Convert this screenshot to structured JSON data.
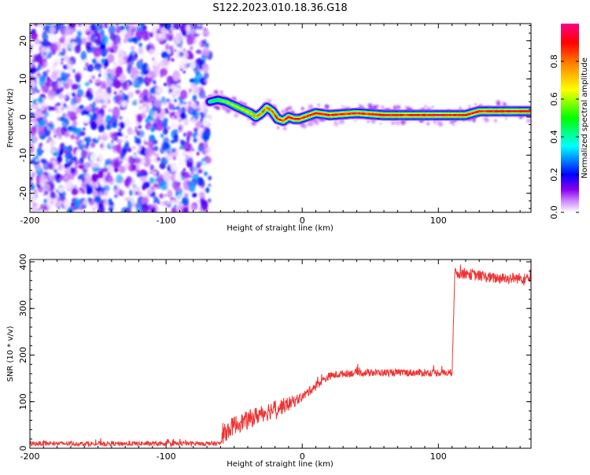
{
  "figure": {
    "title": "S122.2023.010.18.36.G18"
  },
  "chart_data": [
    {
      "type": "heatmap",
      "name": "spectrogram",
      "xlabel": "Height of straight line (km)",
      "ylabel": "Frequency (Hz)",
      "xlim": [
        -200,
        168
      ],
      "ylim": [
        -25,
        24.5
      ],
      "xticks": [
        -200,
        -100,
        0,
        100
      ],
      "yticks": [
        -20,
        -10,
        0,
        10,
        20
      ],
      "grid": false,
      "colorbar": {
        "label": "Normalized spectral amplitude",
        "range": [
          0.0,
          1.0
        ],
        "ticks": [
          0.0,
          0.2,
          0.4,
          0.6,
          0.8
        ],
        "colormap": [
          "#ffffff",
          "#8800ee",
          "#0000ff",
          "#00ffff",
          "#00ff00",
          "#ffff00",
          "#ff8800",
          "#ff0000",
          "#ff0088"
        ]
      },
      "noise_region": {
        "x_from": -200,
        "x_to": -68,
        "amplitude_range": [
          0.0,
          0.3
        ]
      },
      "signal_track": {
        "x": [
          -68,
          -62,
          -56,
          -50,
          -44,
          -38,
          -34,
          -30,
          -26,
          -22,
          -18,
          -14,
          -10,
          -6,
          -2,
          2,
          10,
          20,
          40,
          60,
          80,
          100,
          120,
          130,
          150,
          168
        ],
        "freq": [
          4.0,
          4.5,
          4.0,
          3.0,
          2.0,
          1.0,
          0.0,
          1.0,
          2.5,
          1.5,
          -0.5,
          -1.0,
          0.0,
          -0.5,
          -0.5,
          0.0,
          1.0,
          0.5,
          1.0,
          0.5,
          0.5,
          0.5,
          0.5,
          1.5,
          1.5,
          1.5
        ],
        "amplitude": [
          0.45,
          0.5,
          0.55,
          0.6,
          0.65,
          0.7,
          0.75,
          0.8,
          0.8,
          0.85,
          0.85,
          0.85,
          0.9,
          0.9,
          0.9,
          0.9,
          0.9,
          0.9,
          0.9,
          0.9,
          0.9,
          0.9,
          0.9,
          0.9,
          0.9,
          0.9
        ]
      }
    },
    {
      "type": "line",
      "name": "snr",
      "xlabel": "Height of straight line (km)",
      "ylabel": "SNR (10 * v/v)",
      "xlim": [
        -200,
        168
      ],
      "ylim": [
        0,
        405
      ],
      "xticks": [
        -200,
        -100,
        0,
        100
      ],
      "yticks": [
        0,
        100,
        200,
        300,
        400
      ],
      "grid": false,
      "color": "#ee3333",
      "x": [
        -200,
        -150,
        -100,
        -60,
        -58,
        -50,
        -40,
        -30,
        -20,
        -10,
        0,
        10,
        20,
        30,
        40,
        60,
        80,
        100,
        110,
        112,
        120,
        140,
        168
      ],
      "y": [
        10,
        10,
        10,
        10,
        30,
        50,
        60,
        75,
        85,
        95,
        110,
        135,
        155,
        160,
        162,
        162,
        162,
        162,
        162,
        375,
        375,
        365,
        365
      ],
      "noise": [
        5,
        5,
        5,
        5,
        20,
        20,
        20,
        20,
        20,
        15,
        10,
        10,
        8,
        8,
        8,
        8,
        8,
        8,
        8,
        12,
        12,
        12,
        12
      ]
    }
  ]
}
